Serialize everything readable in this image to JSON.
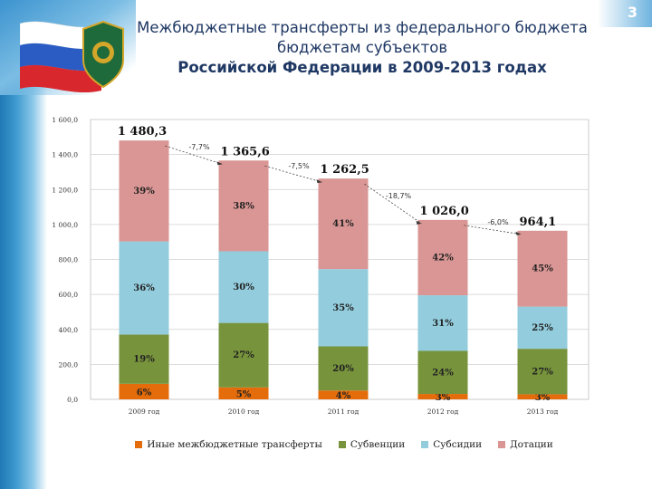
{
  "slide": {
    "number": "3",
    "title_lines": [
      "Межбюджетные трансферты из федерального бюджета",
      "бюджетам субъектов",
      "Российской Федерации в 2009-2013 годах"
    ]
  },
  "chart_data": {
    "type": "bar",
    "stacked": true,
    "categories": [
      "2009 год",
      "2010 год",
      "2011 год",
      "2012 год",
      "2013 год"
    ],
    "totals": [
      1480.3,
      1365.6,
      1262.5,
      1026.0,
      964.1
    ],
    "total_labels": [
      "1 480,3",
      "1 365,6",
      "1 262,5",
      "1 026,0",
      "964,1"
    ],
    "change_labels": [
      "-7,7%",
      "-7,5%",
      "-18,7%",
      "-6,0%"
    ],
    "series": [
      {
        "name": "Иные межбюджетные трансферты",
        "color": "#e46c0a",
        "shares": [
          6,
          5,
          4,
          3,
          3
        ],
        "labels": [
          "6%",
          "5%",
          "4%",
          "3%",
          "3%"
        ]
      },
      {
        "name": "Субвенции",
        "color": "#77933c",
        "shares": [
          19,
          27,
          20,
          24,
          27
        ],
        "labels": [
          "19%",
          "27%",
          "20%",
          "24%",
          "27%"
        ]
      },
      {
        "name": "Субсидии",
        "color": "#93cddd",
        "shares": [
          36,
          30,
          35,
          31,
          25
        ],
        "labels": [
          "36%",
          "30%",
          "35%",
          "31%",
          "25%"
        ]
      },
      {
        "name": "Дотации",
        "color": "#d99694",
        "shares": [
          39,
          38,
          41,
          42,
          45
        ],
        "labels": [
          "39%",
          "38%",
          "41%",
          "42%",
          "45%"
        ]
      }
    ],
    "y_axis": {
      "min": 0,
      "max": 1600,
      "step": 200,
      "tick_labels": [
        "0,0",
        "200,0",
        "400,0",
        "600,0",
        "800,0",
        "1 000,0",
        "1 200,0",
        "1 400,0",
        "1 600,0"
      ]
    },
    "gridlines": true,
    "legend_position": "bottom"
  }
}
